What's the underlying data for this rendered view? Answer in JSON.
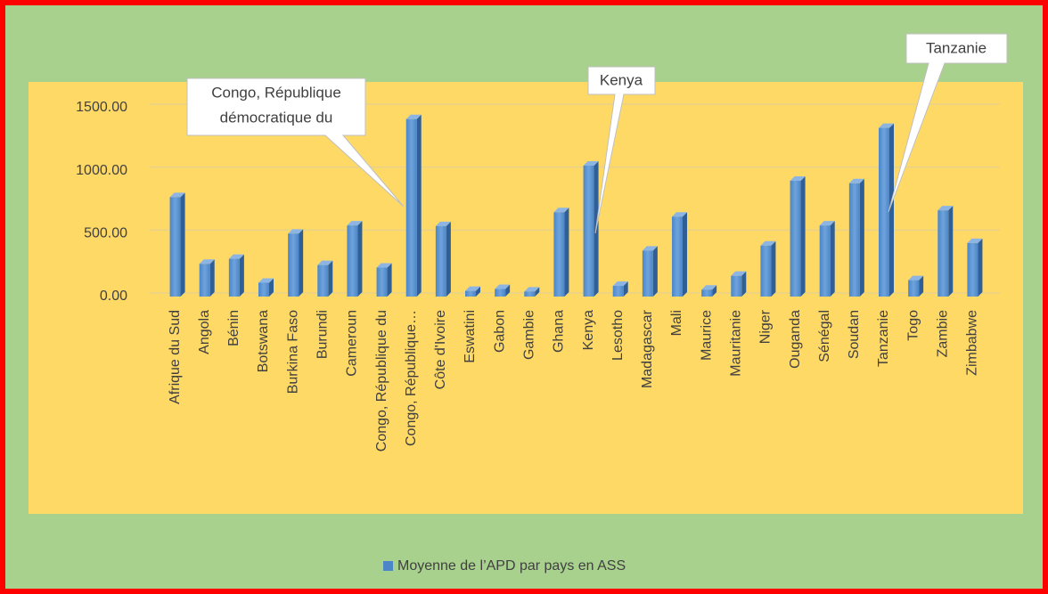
{
  "chart_data": {
    "type": "bar3d",
    "categories": [
      "Afrique du Sud",
      "Angola",
      "Bénin",
      "Botswana",
      "Burkina Faso",
      "Burundi",
      "Cameroun",
      "Congo, République du",
      "Congo, République…",
      "Côte d'Ivoire",
      "Eswatini",
      "Gabon",
      "Gambie",
      "Ghana",
      "Kenya",
      "Lesotho",
      "Madagascar",
      "Mali",
      "Maurice",
      "Mauritanie",
      "Niger",
      "Ouganda",
      "Sénégal",
      "Soudan",
      "Tanzanie",
      "Togo",
      "Zambie",
      "Zimbabwe"
    ],
    "series": [
      {
        "name": "Moyenne de l’APD par pays en ASS",
        "color": "#4a86c8",
        "values": [
          790,
          260,
          300,
          110,
          500,
          250,
          565,
          230,
          1410,
          560,
          45,
          60,
          40,
          670,
          1040,
          85,
          365,
          635,
          55,
          165,
          405,
          920,
          565,
          900,
          1340,
          130,
          685,
          425
        ]
      }
    ],
    "ylim": [
      0,
      1500
    ],
    "yticks": [
      {
        "value": 0,
        "label": "0.00"
      },
      {
        "value": 500,
        "label": "500.00"
      },
      {
        "value": 1000,
        "label": "1000.00"
      },
      {
        "value": 1500,
        "label": "1500.00"
      }
    ],
    "grid": true,
    "annotations": [
      {
        "text": [
          "Congo, République",
          "démocratique du"
        ]
      },
      {
        "text": [
          "Kenya"
        ]
      },
      {
        "text": [
          "Tanzanie"
        ]
      }
    ]
  }
}
